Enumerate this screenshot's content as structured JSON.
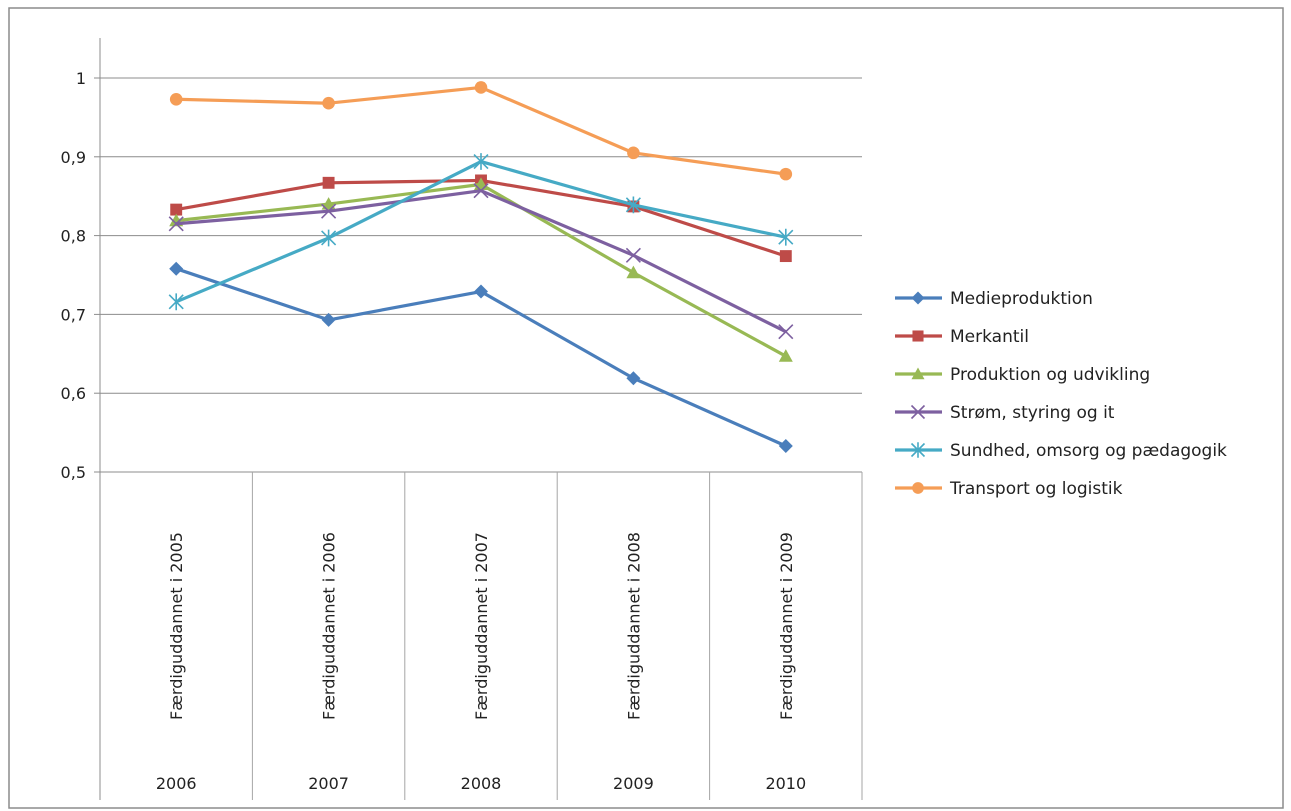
{
  "chart_data": {
    "type": "line",
    "categories": [
      {
        "sub": "Færdiguddannet i 2005",
        "year": "2006"
      },
      {
        "sub": "Færdiguddannet i 2006",
        "year": "2007"
      },
      {
        "sub": "Færdiguddannet i 2007",
        "year": "2008"
      },
      {
        "sub": "Færdiguddannet i 2008",
        "year": "2009"
      },
      {
        "sub": "Færdiguddannet i 2009",
        "year": "2010"
      }
    ],
    "yticks": [
      "1",
      "0,9",
      "0,8",
      "0,7",
      "0,6",
      "0,5"
    ],
    "ylim": [
      0.5,
      1.05
    ],
    "grid": true,
    "legend_position": "right",
    "series": [
      {
        "name": "Medieproduktion",
        "marker": "diamond",
        "color": "#4a7ebb",
        "values": [
          0.758,
          0.693,
          0.729,
          0.619,
          0.533
        ]
      },
      {
        "name": "Merkantil",
        "marker": "square",
        "color": "#be4b48",
        "values": [
          0.833,
          0.867,
          0.87,
          0.837,
          0.774
        ]
      },
      {
        "name": "Produktion og udvikling",
        "marker": "triangle",
        "color": "#98b954",
        "values": [
          0.819,
          0.84,
          0.865,
          0.753,
          0.647
        ]
      },
      {
        "name": "Strøm, styring og it",
        "marker": "x",
        "color": "#7d60a0",
        "values": [
          0.815,
          0.831,
          0.857,
          0.775,
          0.678
        ]
      },
      {
        "name": "Sundhed, omsorg og pædagogik",
        "marker": "star",
        "color": "#46aac5",
        "values": [
          0.716,
          0.797,
          0.894,
          0.839,
          0.798
        ]
      },
      {
        "name": "Transport og logistik",
        "marker": "circle",
        "color": "#f59d56",
        "values": [
          0.973,
          0.968,
          0.988,
          0.905,
          0.878
        ]
      }
    ]
  }
}
